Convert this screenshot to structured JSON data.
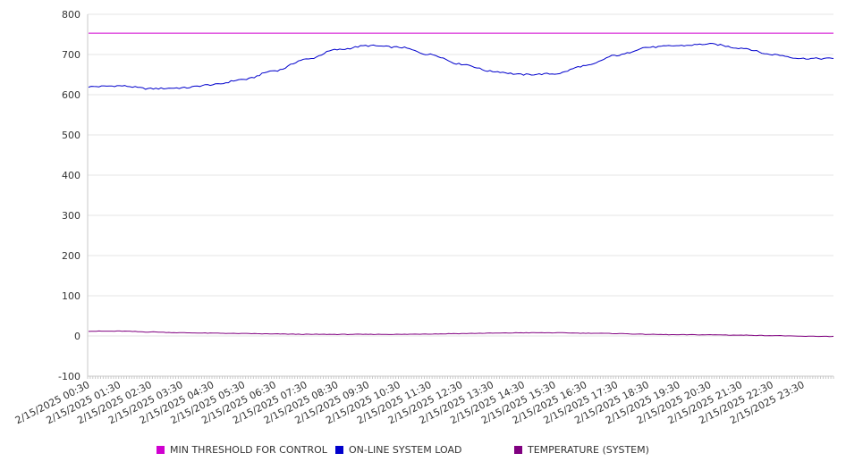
{
  "chart_data": {
    "type": "line",
    "ylim": [
      -100,
      800
    ],
    "yticks": [
      -100,
      0,
      100,
      200,
      300,
      400,
      500,
      600,
      700,
      800
    ],
    "grid": true,
    "legend_position": "bottom",
    "x_categories": [
      "2/15/2025 00:30",
      "2/15/2025 01:30",
      "2/15/2025 02:30",
      "2/15/2025 03:30",
      "2/15/2025 04:30",
      "2/15/2025 05:30",
      "2/15/2025 06:30",
      "2/15/2025 07:30",
      "2/15/2025 08:30",
      "2/15/2025 09:30",
      "2/15/2025 10:30",
      "2/15/2025 11:30",
      "2/15/2025 12:30",
      "2/15/2025 13:30",
      "2/15/2025 14:30",
      "2/15/2025 15:30",
      "2/15/2025 16:30",
      "2/15/2025 17:30",
      "2/15/2025 18:30",
      "2/15/2025 19:30",
      "2/15/2025 20:30",
      "2/15/2025 21:30",
      "2/15/2025 22:30",
      "2/15/2025 23:30"
    ],
    "series": [
      {
        "name": "MIN THRESHOLD FOR CONTROL",
        "color": "#d000d0",
        "values": [
          753,
          753,
          753,
          753,
          753,
          753,
          753,
          753,
          753,
          753,
          753,
          753,
          753,
          753,
          753,
          753,
          753,
          753,
          753,
          753,
          753,
          753,
          753,
          753
        ]
      },
      {
        "name": "ON-LINE SYSTEM LOAD",
        "color": "#0000cc",
        "values": [
          620,
          622,
          615,
          617,
          625,
          638,
          660,
          688,
          712,
          722,
          718,
          700,
          676,
          658,
          650,
          652,
          672,
          698,
          718,
          722,
          726,
          716,
          700,
          690
        ]
      },
      {
        "name": "TEMPERATURE (SYSTEM)",
        "color": "#800080",
        "values": [
          12,
          12,
          10,
          8,
          7,
          6,
          5,
          4,
          4,
          4,
          4,
          5,
          6,
          7,
          8,
          8,
          7,
          6,
          4,
          3,
          3,
          2,
          1,
          -1
        ]
      }
    ]
  }
}
